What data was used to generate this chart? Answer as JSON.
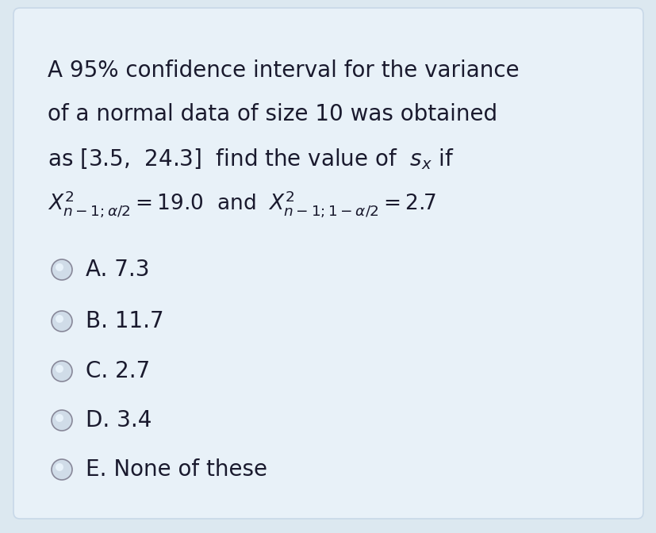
{
  "background_color": "#dce8f0",
  "card_color": "#e8f1f8",
  "card_border_color": "#c8d8e8",
  "text_color": "#1a1a2e",
  "question_lines": [
    "A 95% confidence interval for the variance",
    "of a normal data of size 10 was obtained",
    "as [3.5,  24.3]  find the value of  $s_x$ if"
  ],
  "math_line": "$X^2_{n-1;\\alpha/2}=19.0$  and  $X^2_{n-1;1-\\alpha/2}=2.7$",
  "options": [
    "A. 7.3",
    "B. 11.7",
    "C. 2.7",
    "D. 3.4",
    "E. None of these"
  ],
  "font_size_question": 20,
  "font_size_math": 19,
  "font_size_options": 20,
  "figsize": [
    8.28,
    6.72
  ],
  "dpi": 100
}
